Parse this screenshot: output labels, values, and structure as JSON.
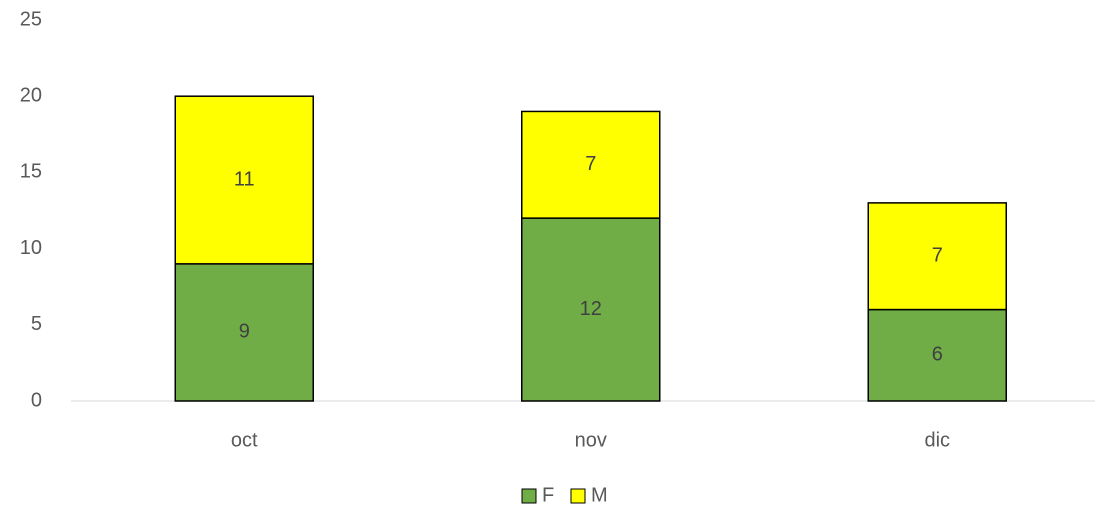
{
  "chart_data": {
    "type": "stacked-bar",
    "categories": [
      "oct",
      "nov",
      "dic"
    ],
    "series": [
      {
        "name": "F",
        "color": "#70ad47",
        "values": [
          9,
          12,
          6
        ]
      },
      {
        "name": "M",
        "color": "#ffff00",
        "values": [
          11,
          7,
          7
        ]
      }
    ],
    "ylim": [
      0,
      25
    ],
    "yticks": [
      0,
      5,
      10,
      15,
      20,
      25
    ],
    "grid": false,
    "legend": "bottom"
  }
}
